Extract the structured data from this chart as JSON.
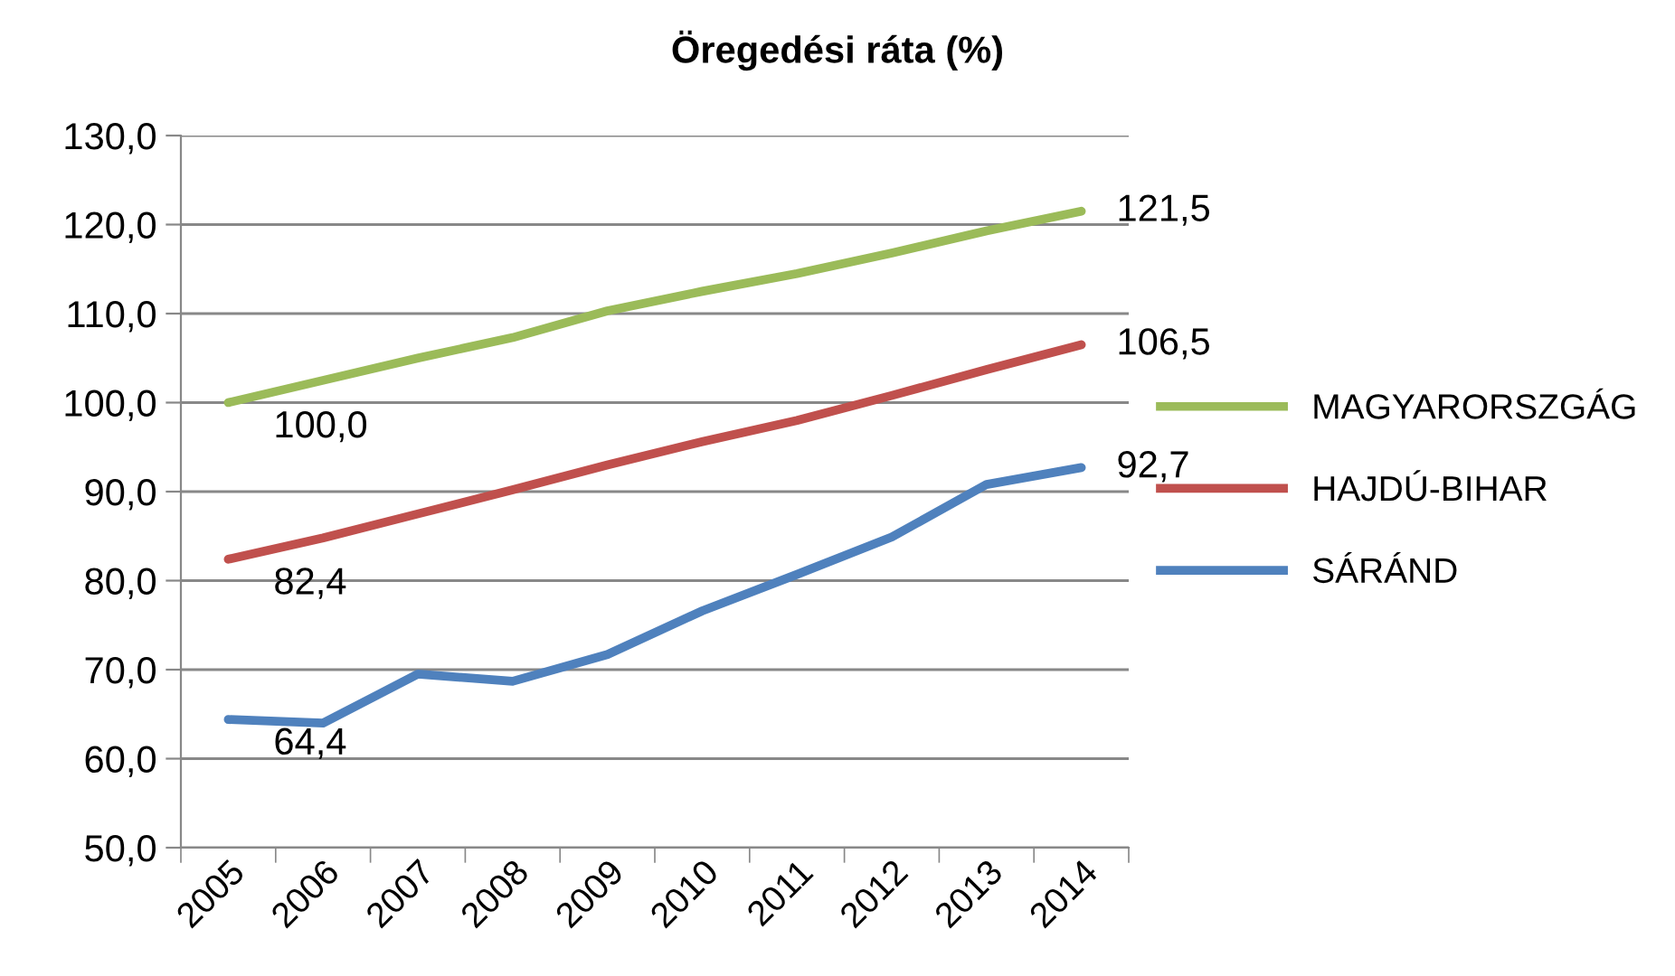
{
  "chart_data": {
    "type": "line",
    "title": "Öregedési ráta (%)",
    "categories": [
      "2005",
      "2006",
      "2007",
      "2008",
      "2009",
      "2010",
      "2011",
      "2012",
      "2013",
      "2014"
    ],
    "series": [
      {
        "name": "MAGYARORSZGÁG",
        "color": "#9bbb59",
        "values": [
          100.0,
          102.5,
          105.0,
          107.3,
          110.3,
          112.5,
          114.5,
          116.8,
          119.3,
          121.5
        ],
        "value_labels": [
          "100,0",
          null,
          null,
          null,
          null,
          null,
          null,
          null,
          null,
          "121,5"
        ]
      },
      {
        "name": "HAJDÚ-BIHAR",
        "color": "#c0504d",
        "values": [
          82.4,
          84.8,
          87.5,
          90.2,
          93.0,
          95.6,
          98.0,
          100.8,
          103.7,
          106.5
        ],
        "value_labels": [
          "82,4",
          null,
          null,
          null,
          null,
          null,
          null,
          null,
          null,
          "106,5"
        ]
      },
      {
        "name": "SÁRÁND",
        "color": "#4f81bd",
        "values": [
          64.4,
          64.0,
          69.5,
          68.7,
          71.7,
          76.6,
          80.7,
          84.9,
          90.8,
          92.7
        ],
        "value_labels": [
          "64,4",
          null,
          null,
          null,
          null,
          null,
          null,
          null,
          null,
          "92,7"
        ]
      }
    ],
    "ylim": [
      50,
      130
    ],
    "yticks": [
      {
        "value": 50,
        "label": "50,0"
      },
      {
        "value": 60,
        "label": "60,0"
      },
      {
        "value": 70,
        "label": "70,0"
      },
      {
        "value": 80,
        "label": "80,0"
      },
      {
        "value": 90,
        "label": "90,0"
      },
      {
        "value": 100,
        "label": "100,0"
      },
      {
        "value": 110,
        "label": "110,0"
      },
      {
        "value": 120,
        "label": "120,0"
      },
      {
        "value": 130,
        "label": "130,0"
      }
    ],
    "grid": "y",
    "legend": "right",
    "marker": "none",
    "line_style": "solid"
  }
}
